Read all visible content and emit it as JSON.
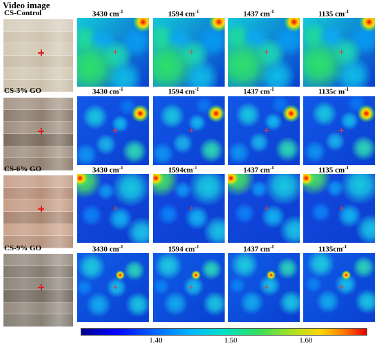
{
  "figure": {
    "heading": "Video image",
    "rows": [
      {
        "label": "CS-Control",
        "wavenumbers": [
          "3430 cm",
          "1594 cm",
          "1437 cm",
          "1135 cm"
        ],
        "superscript": "-1",
        "photo_palette": [
          "#d8cfbf",
          "#cfc4b0",
          "#d4c9b6",
          "#c9bea9",
          "#d2c8b5",
          "#cdc2ae"
        ],
        "map_palette": "control"
      },
      {
        "label": "CS-3% GO",
        "wavenumbers": [
          "3430 cm",
          "1594 cm",
          "1437 cm",
          "1135c m"
        ],
        "superscript": "-1",
        "photo_palette": [
          "#a8998a",
          "#8d7e70",
          "#9f8f80",
          "#7c6d60",
          "#a29383",
          "#928273"
        ],
        "map_palette": "go3"
      },
      {
        "label": "CS-6% GO",
        "wavenumbers": [
          "3430 cm",
          "1594cm",
          "1437 cm",
          "1135 cm"
        ],
        "superscript": "-1",
        "photo_palette": [
          "#c9a590",
          "#b78f79",
          "#c79f88",
          "#a98672",
          "#caa48d",
          "#b79580"
        ],
        "map_palette": "go6"
      },
      {
        "label": "CS-9% GO",
        "wavenumbers": [
          "3430 cm",
          "1594 cm",
          "1437 cm",
          "1135cm"
        ],
        "superscript": "-1",
        "photo_palette": [
          "#9a9186",
          "#857b71",
          "#8f867b",
          "#7a7066",
          "#948a7f",
          "#868075"
        ],
        "map_palette": "go9"
      }
    ],
    "colorbar": {
      "ticks": [
        "1.40",
        "1.50",
        "1.60"
      ],
      "tick_values": [
        1.4,
        1.5,
        1.6
      ],
      "range": [
        1.3,
        1.68
      ],
      "colors": [
        "#00008b",
        "#0000ff",
        "#00b4ff",
        "#33e05a",
        "#ffd400",
        "#e20000"
      ]
    }
  }
}
